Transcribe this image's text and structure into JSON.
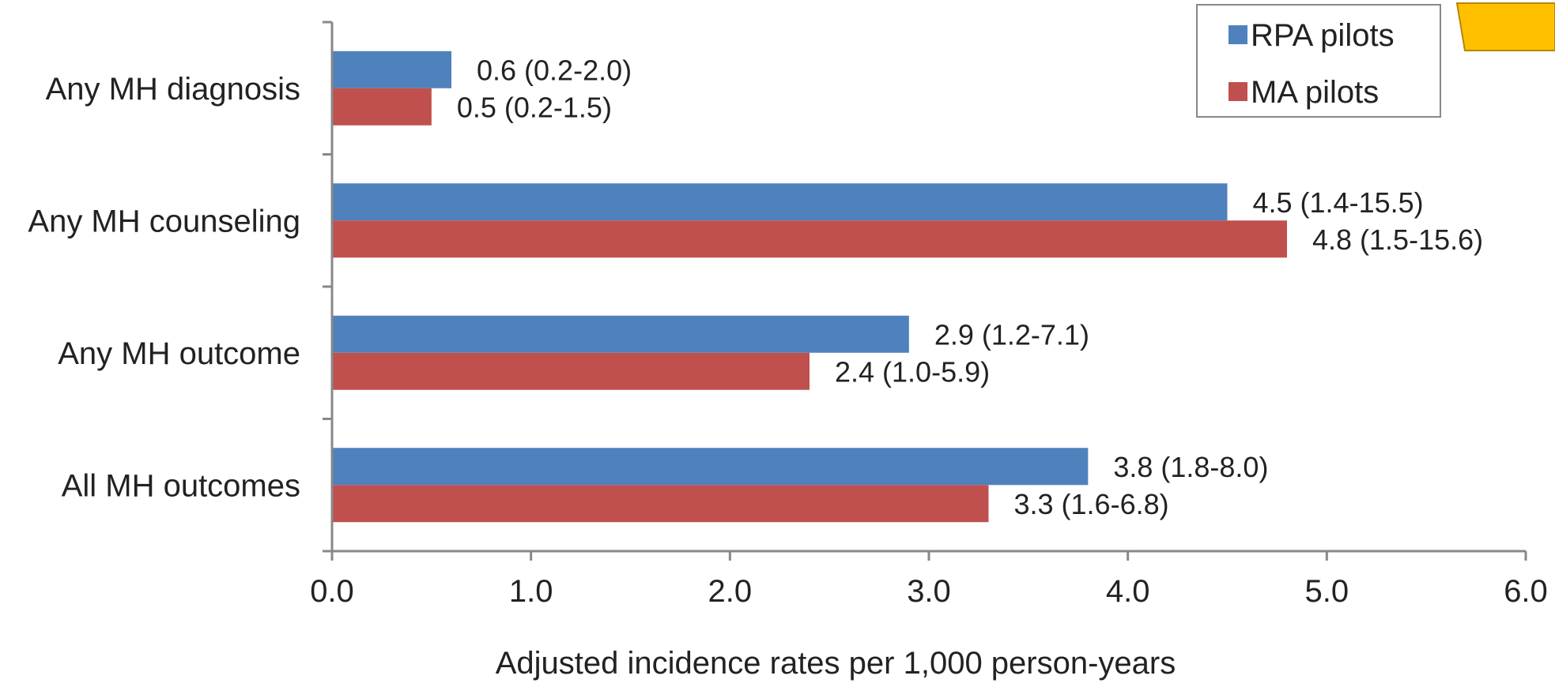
{
  "chart_data": {
    "type": "bar",
    "orientation": "horizontal",
    "categories": [
      "Any MH diagnosis",
      "Any MH counseling",
      "Any MH outcome",
      "All MH outcomes"
    ],
    "series": [
      {
        "name": "RPA pilots",
        "color": "#4F81BD",
        "values": [
          0.6,
          4.5,
          2.9,
          3.8
        ],
        "labels": [
          "0.6 (0.2-2.0)",
          "4.5 (1.4-15.5)",
          "2.9 (1.2-7.1)",
          "3.8 (1.8-8.0)"
        ]
      },
      {
        "name": "MA pilots",
        "color": "#C0504D",
        "values": [
          0.5,
          4.8,
          2.4,
          3.3
        ],
        "labels": [
          "0.5 (0.2-1.5)",
          "4.8 (1.5-15.6)",
          "2.4 (1.0-5.9)",
          "3.3 (1.6-6.8)"
        ]
      }
    ],
    "xlabel": "Adjusted incidence rates per 1,000 person-years",
    "ylabel": "",
    "xlim": [
      0,
      6
    ],
    "xticks": [
      0,
      1,
      2,
      3,
      4,
      5,
      6
    ],
    "xtick_labels": [
      "0.0",
      "1.0",
      "2.0",
      "3.0",
      "4.0",
      "5.0",
      "6.0"
    ],
    "grid": false,
    "legend_position": "top-right",
    "annotation_shape_color": "#FFC000"
  }
}
